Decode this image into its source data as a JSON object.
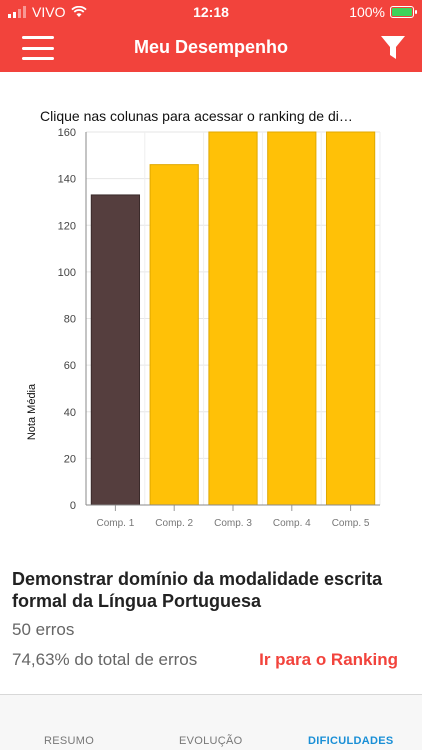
{
  "status": {
    "carrier": "VIVO",
    "time": "12:18",
    "battery": "100%"
  },
  "nav": {
    "title": "Meu Desempenho"
  },
  "chart_data": {
    "type": "bar",
    "title": "Clique nas colunas para acessar o ranking de di…",
    "ylabel": "Nota Média",
    "xlabel": "",
    "categories": [
      "Comp. 1",
      "Comp. 2",
      "Comp. 3",
      "Comp. 4",
      "Comp. 5"
    ],
    "values": [
      133,
      146,
      160,
      160,
      160
    ],
    "colors": [
      "#553e3e",
      "#ffc107",
      "#ffc107",
      "#ffc107",
      "#ffc107"
    ],
    "ylim": [
      0,
      160
    ],
    "yticks": [
      0,
      20,
      40,
      60,
      80,
      100,
      120,
      140,
      160
    ],
    "grid": true
  },
  "detail": {
    "title": "Demonstrar domínio da modalidade escrita formal da Língua Portuguesa",
    "errors": "50 erros",
    "percent": "74,63% do total de erros",
    "ranking_link": "Ir para o Ranking"
  },
  "tabs": [
    {
      "label": "RESUMO",
      "active": false
    },
    {
      "label": "EVOLUÇÃO",
      "active": false
    },
    {
      "label": "DIFICULDADES",
      "active": true
    }
  ]
}
